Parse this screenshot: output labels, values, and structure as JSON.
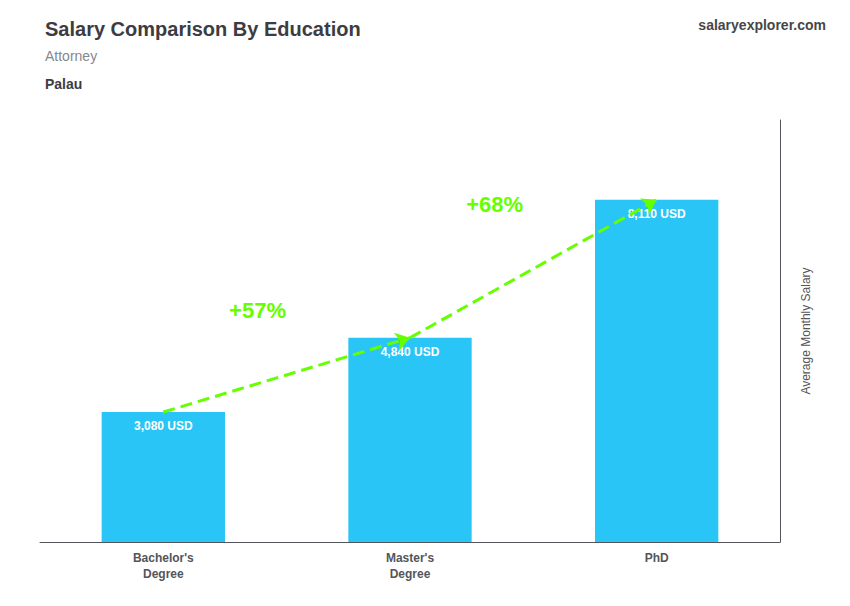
{
  "chart_data": {
    "type": "bar",
    "title": "Salary Comparison By Education",
    "subtitle": [
      "Attorney",
      "Palau"
    ],
    "ylabel": "Average Monthly Salary",
    "categories": [
      "Bachelor's\nDegree",
      "Master's\nDegree",
      "PhD"
    ],
    "values": [
      3080,
      4840,
      8110
    ],
    "value_labels": [
      "3,080 USD",
      "4,840 USD",
      "8,110 USD"
    ],
    "data_labels": true,
    "color": "#29c5f6",
    "ylim": [
      0,
      10000
    ],
    "tick_labels": "x",
    "grid": false,
    "annotations": [
      {
        "text": "+57%",
        "from": "Bachelor's\nDegree",
        "to": "Master's\nDegree",
        "color": "#66ff00"
      },
      {
        "text": "+68%",
        "from": "Master's\nDegree",
        "to": "PhD",
        "color": "#66ff00"
      },
      {
        "text": "salaryexplorer.com"
      }
    ]
  }
}
